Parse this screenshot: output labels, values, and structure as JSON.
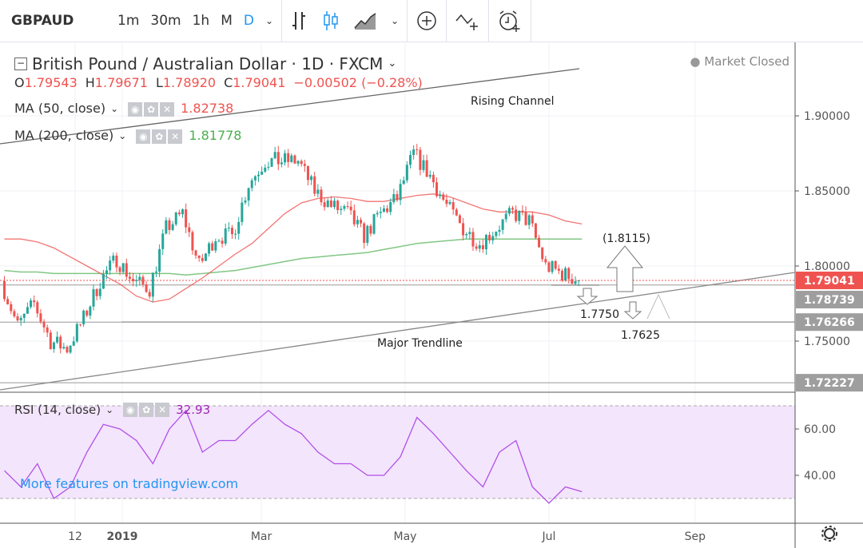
{
  "toolbar": {
    "symbol": "GBPAUD",
    "intervals": [
      "1m",
      "30m",
      "1h",
      "M",
      "D"
    ],
    "active_interval": "D"
  },
  "header": {
    "title": "British Pound / Australian Dollar · 1D · FXCM",
    "ohlc": {
      "o_label": "O",
      "o": "1.79543",
      "h_label": "H",
      "h": "1.79671",
      "l_label": "L",
      "l": "1.78920",
      "c_label": "C",
      "c": "1.79041",
      "change": "−0.00502 (−0.28%)"
    },
    "market_status": "Market Closed"
  },
  "indicators": {
    "ma50": {
      "label": "MA (50, close)",
      "value": "1.82738",
      "color": "#ef5350"
    },
    "ma200": {
      "label": "MA (200, close)",
      "value": "1.81778",
      "color": "#4caf50"
    },
    "rsi": {
      "label": "RSI (14, close)",
      "value": "32.93",
      "color": "#9c27b0"
    }
  },
  "promo": "More features on tradingview.com",
  "annotations": {
    "rising_channel": "Rising Channel",
    "major_trendline": "Major Trendline",
    "target_up": "(1.8115)",
    "target_1": "1.7750",
    "target_2": "1.7625"
  },
  "colors": {
    "up": "#26a69a",
    "down": "#ef5350",
    "ma50": "#ef5350",
    "ma200": "#81c784",
    "rsi": "#b14fe8",
    "rsi_band": "#f3e5fc"
  },
  "chart_data": {
    "type": "candlestick",
    "price_axis": {
      "ticks": [
        "1.90000",
        "1.85000",
        "1.80000",
        "1.75000"
      ],
      "range": [
        1.715,
        1.96
      ]
    },
    "price_labels": [
      {
        "value": "1.79041",
        "color": "#ef5350"
      },
      {
        "value": "1.78739",
        "color": "#9e9e9e"
      },
      {
        "value": "1.76266",
        "color": "#9e9e9e"
      },
      {
        "value": "1.72227",
        "color": "#9e9e9e"
      }
    ],
    "horizontal_levels": [
      1.78739,
      1.76266,
      1.72227
    ],
    "time_axis": {
      "ticks": [
        "12",
        "2019",
        "Mar",
        "May",
        "Jul",
        "Sep"
      ],
      "tick_dates": [
        "2018-12-12",
        "2019-01-01",
        "2019-03-01",
        "2019-05-01",
        "2019-07-01",
        "2019-09-01"
      ]
    },
    "weekly_dates_start": "2018-11-12",
    "weekly_close": [
      1.79,
      1.76,
      1.775,
      1.75,
      1.745,
      1.765,
      1.79,
      1.805,
      1.79,
      1.785,
      1.825,
      1.835,
      1.8,
      1.82,
      1.82,
      1.855,
      1.87,
      1.87,
      1.87,
      1.85,
      1.84,
      1.835,
      1.82,
      1.835,
      1.845,
      1.875,
      1.86,
      1.84,
      1.825,
      1.815,
      1.825,
      1.835,
      1.83,
      1.8,
      1.795,
      1.79041
    ],
    "ma50": [
      1.818,
      1.818,
      1.816,
      1.812,
      1.806,
      1.8,
      1.794,
      1.788,
      1.78,
      1.776,
      1.778,
      1.785,
      1.792,
      1.8,
      1.808,
      1.815,
      1.825,
      1.835,
      1.842,
      1.845,
      1.846,
      1.845,
      1.843,
      1.843,
      1.845,
      1.847,
      1.848,
      1.846,
      1.842,
      1.838,
      1.836,
      1.836,
      1.836,
      1.834,
      1.83,
      1.828
    ],
    "ma200": [
      1.797,
      1.796,
      1.796,
      1.795,
      1.795,
      1.795,
      1.795,
      1.795,
      1.795,
      1.795,
      1.795,
      1.794,
      1.795,
      1.796,
      1.797,
      1.799,
      1.801,
      1.803,
      1.805,
      1.806,
      1.807,
      1.808,
      1.809,
      1.811,
      1.813,
      1.815,
      1.816,
      1.817,
      1.818,
      1.818,
      1.818,
      1.818,
      1.818,
      1.818,
      1.818,
      1.818
    ],
    "rsi": {
      "ticks": [
        "60.00",
        "40.00"
      ],
      "band": [
        30,
        70
      ],
      "values": [
        42,
        35,
        45,
        30,
        35,
        50,
        62,
        60,
        55,
        45,
        60,
        68,
        50,
        55,
        55,
        62,
        68,
        62,
        58,
        50,
        45,
        45,
        40,
        40,
        48,
        65,
        58,
        50,
        42,
        35,
        50,
        55,
        35,
        28,
        35,
        32.93
      ]
    }
  }
}
